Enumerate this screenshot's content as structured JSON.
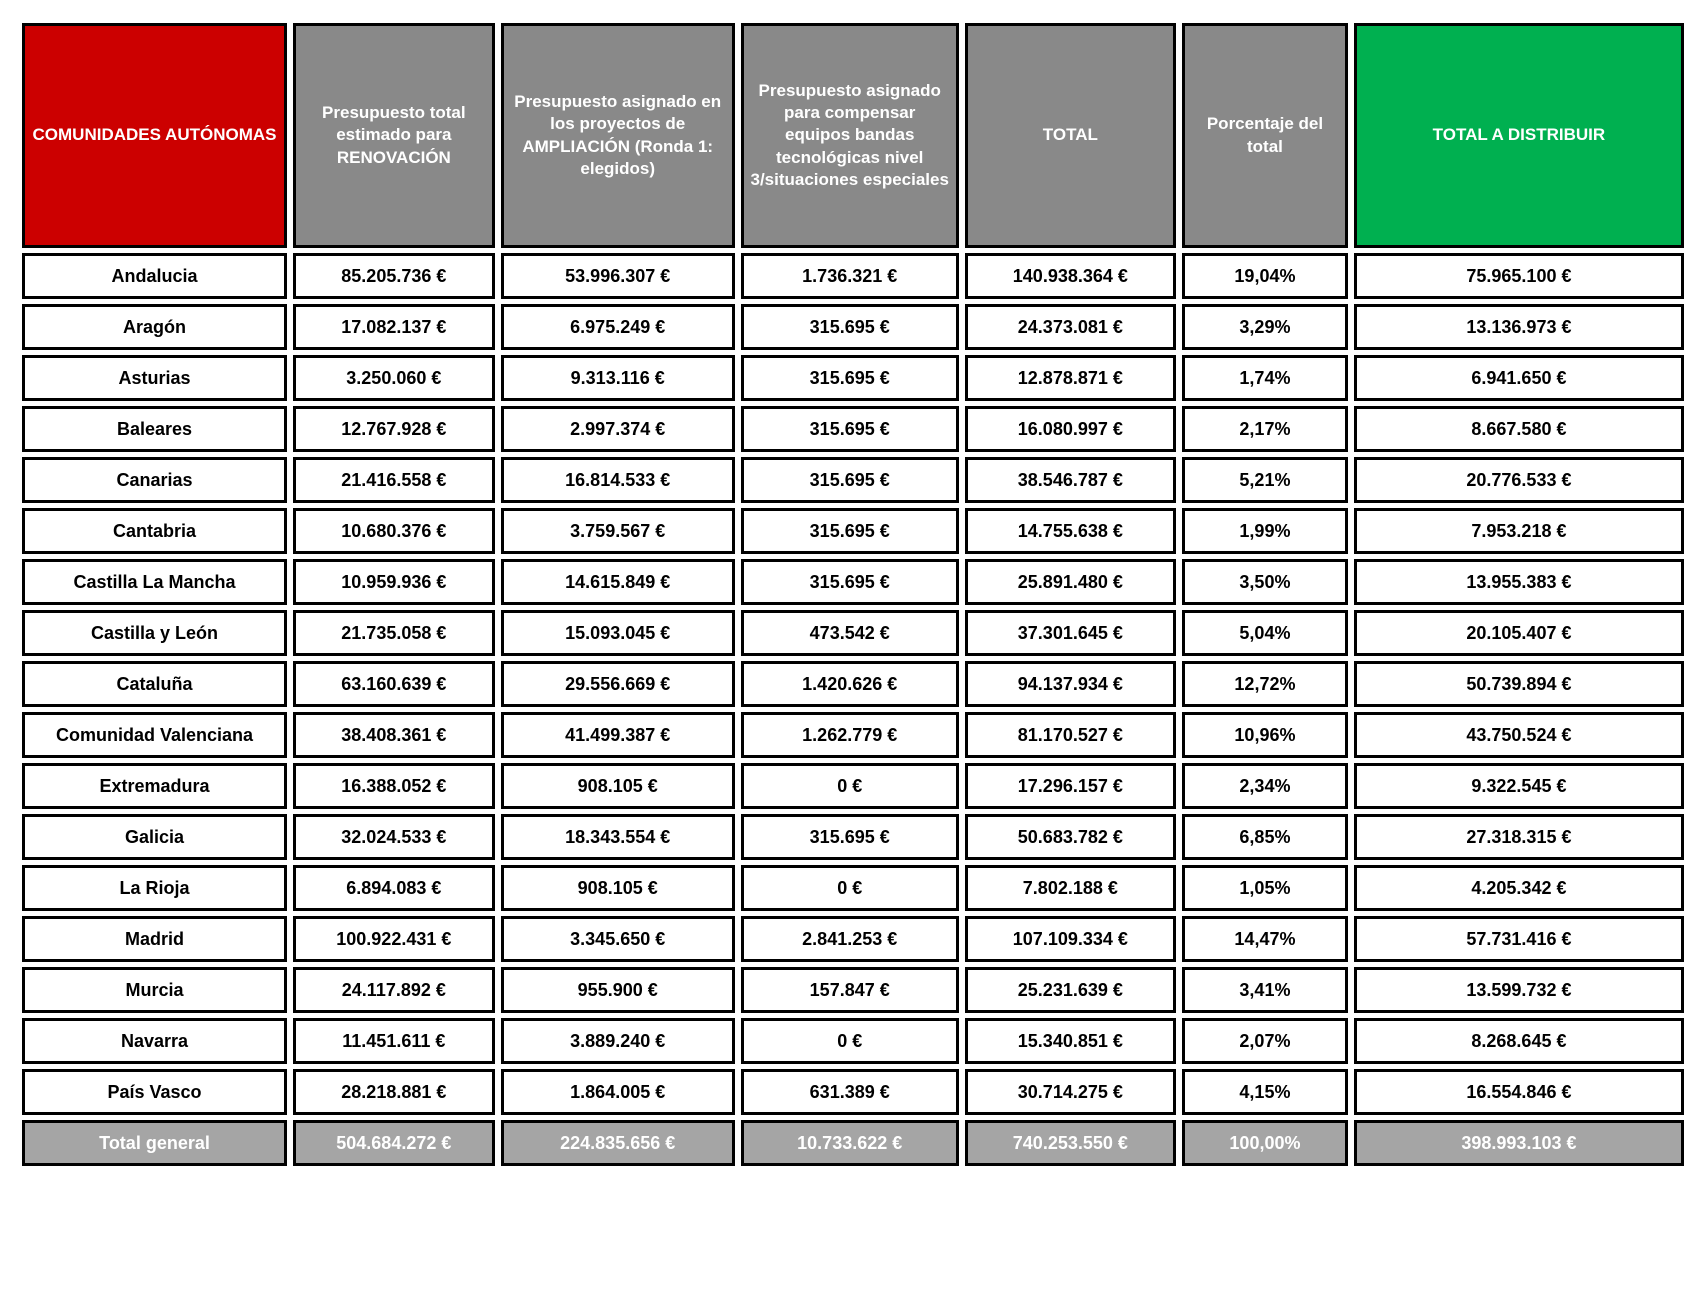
{
  "chart_data": {
    "type": "table",
    "title": "",
    "columns": [
      "COMUNIDADES AUTÓNOMAS",
      "Presupuesto total estimado para RENOVACIÓN",
      "Presupuesto asignado en los proyectos de AMPLIACIÓN (Ronda 1: elegidos)",
      "Presupuesto asignado para compensar equipos bandas tecnológicas nivel 3/situaciones especiales",
      "TOTAL",
      "Porcentaje del total",
      "TOTAL A DISTRIBUIR"
    ],
    "rows": [
      [
        "Andalucia",
        "85.205.736 €",
        "53.996.307 €",
        "1.736.321 €",
        "140.938.364 €",
        "19,04%",
        "75.965.100 €"
      ],
      [
        "Aragón",
        "17.082.137 €",
        "6.975.249 €",
        "315.695 €",
        "24.373.081 €",
        "3,29%",
        "13.136.973 €"
      ],
      [
        "Asturias",
        "3.250.060 €",
        "9.313.116 €",
        "315.695 €",
        "12.878.871 €",
        "1,74%",
        "6.941.650 €"
      ],
      [
        "Baleares",
        "12.767.928 €",
        "2.997.374 €",
        "315.695 €",
        "16.080.997 €",
        "2,17%",
        "8.667.580 €"
      ],
      [
        "Canarias",
        "21.416.558 €",
        "16.814.533 €",
        "315.695 €",
        "38.546.787 €",
        "5,21%",
        "20.776.533 €"
      ],
      [
        "Cantabria",
        "10.680.376 €",
        "3.759.567 €",
        "315.695 €",
        "14.755.638 €",
        "1,99%",
        "7.953.218 €"
      ],
      [
        "Castilla La Mancha",
        "10.959.936 €",
        "14.615.849 €",
        "315.695 €",
        "25.891.480 €",
        "3,50%",
        "13.955.383 €"
      ],
      [
        "Castilla y León",
        "21.735.058 €",
        "15.093.045 €",
        "473.542 €",
        "37.301.645 €",
        "5,04%",
        "20.105.407 €"
      ],
      [
        "Cataluña",
        "63.160.639 €",
        "29.556.669 €",
        "1.420.626 €",
        "94.137.934 €",
        "12,72%",
        "50.739.894 €"
      ],
      [
        "Comunidad Valenciana",
        "38.408.361 €",
        "41.499.387 €",
        "1.262.779 €",
        "81.170.527 €",
        "10,96%",
        "43.750.524 €"
      ],
      [
        "Extremadura",
        "16.388.052 €",
        "908.105 €",
        "0 €",
        "17.296.157 €",
        "2,34%",
        "9.322.545 €"
      ],
      [
        "Galicia",
        "32.024.533 €",
        "18.343.554 €",
        "315.695 €",
        "50.683.782 €",
        "6,85%",
        "27.318.315 €"
      ],
      [
        "La Rioja",
        "6.894.083 €",
        "908.105 €",
        "0 €",
        "7.802.188 €",
        "1,05%",
        "4.205.342 €"
      ],
      [
        "Madrid",
        "100.922.431 €",
        "3.345.650 €",
        "2.841.253 €",
        "107.109.334 €",
        "14,47%",
        "57.731.416 €"
      ],
      [
        "Murcia",
        "24.117.892 €",
        "955.900 €",
        "157.847 €",
        "25.231.639 €",
        "3,41%",
        "13.599.732 €"
      ],
      [
        "Navarra",
        "11.451.611 €",
        "3.889.240 €",
        "0 €",
        "15.340.851 €",
        "2,07%",
        "8.268.645 €"
      ],
      [
        "País Vasco",
        "28.218.881 €",
        "1.864.005 €",
        "631.389 €",
        "30.714.275 €",
        "4,15%",
        "16.554.846 €"
      ]
    ],
    "total_row": [
      "Total general",
      "504.684.272 €",
      "224.835.656 €",
      "10.733.622 €",
      "740.253.550 €",
      "100,00%",
      "398.993.103 €"
    ],
    "layout": {
      "column_widths_percent": [
        16.3,
        12.4,
        14.4,
        13.4,
        13.0,
        10.2,
        20.3
      ]
    },
    "colors": {
      "header_first_bg": "#cc0000",
      "header_mid_bg": "#898989",
      "header_last_bg": "#00b050",
      "total_row_bg": "#a5a5a5",
      "border": "#000000",
      "header_text": "#ffffff",
      "cell_text": "#000000",
      "total_row_text": "#ffffff"
    }
  }
}
